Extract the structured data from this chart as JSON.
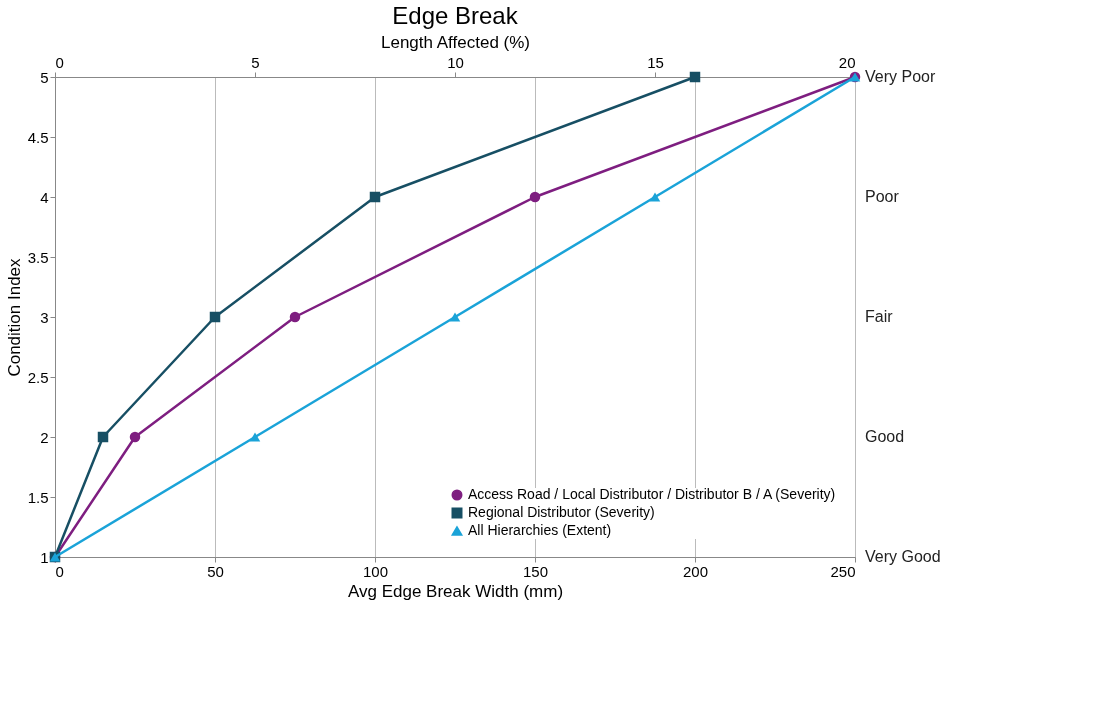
{
  "chart_data": {
    "type": "line",
    "title": "Edge Break",
    "xlabel": "Avg Edge Break Width (mm)",
    "x2label": "Length Affected (%)",
    "ylabel": "Condition Index",
    "xlim": [
      0,
      250
    ],
    "xticks": [
      0,
      50,
      100,
      150,
      200,
      250
    ],
    "x2lim": [
      0,
      20
    ],
    "x2ticks": [
      0,
      5,
      10,
      15,
      20
    ],
    "ylim": [
      1,
      5
    ],
    "yticks": [
      1,
      1.5,
      2,
      2.5,
      3,
      3.5,
      4,
      4.5,
      5
    ],
    "annotations": [
      "Very Good",
      "Good",
      "Fair",
      "Poor",
      "Very Poor"
    ],
    "grid": "x",
    "legend": "bottom right",
    "line_style": "solid",
    "series": [
      {
        "name": "Access Road / Local Distributor / Distributor B / A (Severity)",
        "color": "#7e1e80",
        "marker": "circle",
        "x": [
          0,
          25,
          75,
          150,
          250
        ],
        "values": [
          1,
          2,
          3,
          4,
          5
        ]
      },
      {
        "name": "Regional Distributor (Severity)",
        "color": "#174f64",
        "marker": "square",
        "x": [
          0,
          15,
          50,
          100,
          200
        ],
        "values": [
          1,
          2,
          3,
          4,
          5
        ]
      },
      {
        "name": "All Hierarchies (Extent)",
        "color": "#1aa3d8",
        "marker": "triangle",
        "axis": "x2",
        "x": [
          0,
          5,
          10,
          15,
          20
        ],
        "values": [
          1,
          2,
          3,
          4,
          5
        ]
      }
    ]
  }
}
